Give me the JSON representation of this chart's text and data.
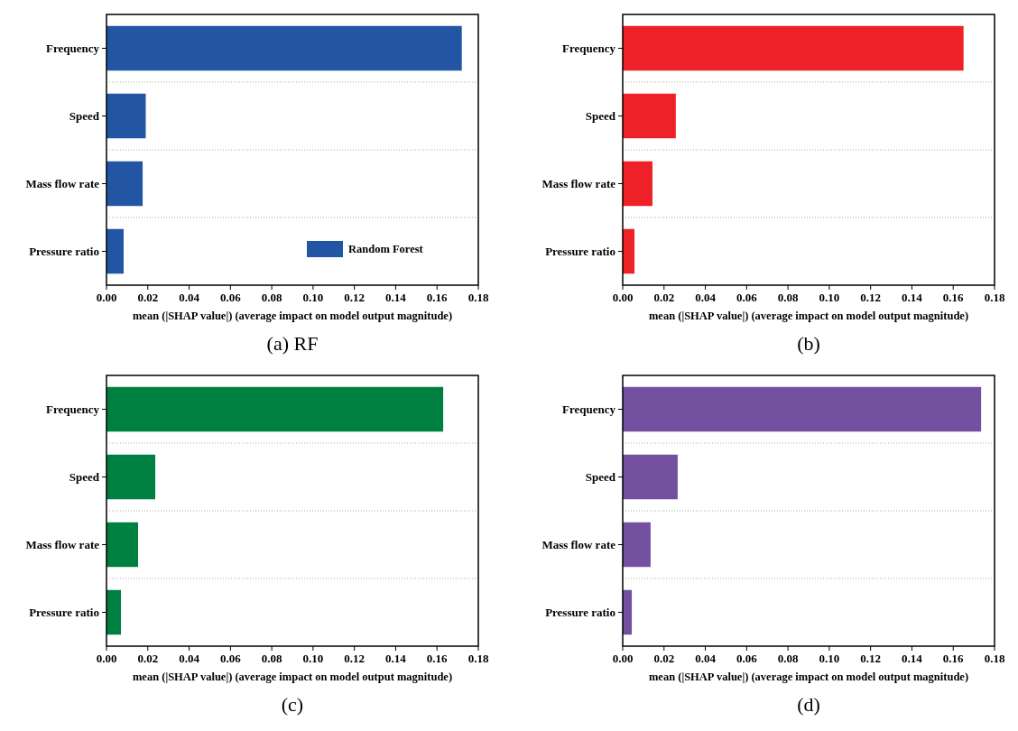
{
  "chart_data": [
    {
      "type": "bar",
      "orientation": "horizontal",
      "title": "(a) RF",
      "xlabel": "mean (|SHAP value|) (average impact on model output magnitude)",
      "categories": [
        "Frequency",
        "Speed",
        "Mass flow rate",
        "Pressure ratio"
      ],
      "series": [
        {
          "name": "Random Forest",
          "color": "#2255a4",
          "values": [
            0.172,
            0.019,
            0.0175,
            0.0083
          ]
        }
      ],
      "xlim": [
        0,
        0.18
      ],
      "xticks": [
        {
          "value": 0,
          "label": "0.00"
        },
        {
          "value": 0.02,
          "label": "0.02"
        },
        {
          "value": 0.04,
          "label": "0.04"
        },
        {
          "value": 0.06,
          "label": "0.06"
        },
        {
          "value": 0.08,
          "label": "0.08"
        },
        {
          "value": 0.1,
          "label": "0.10"
        },
        {
          "value": 0.12,
          "label": "0.12"
        },
        {
          "value": 0.14,
          "label": "0.14"
        },
        {
          "value": 0.16,
          "label": "0.16"
        },
        {
          "value": 0.18,
          "label": "0.18"
        }
      ],
      "grid": "y",
      "legend": "bottom right"
    },
    {
      "type": "bar",
      "orientation": "horizontal",
      "title": "(b)",
      "xlabel": "mean (|SHAP value|) (average impact on model output magnitude)",
      "categories": [
        "Frequency",
        "Speed",
        "Mass flow rate",
        "Pressure ratio"
      ],
      "series": [
        {
          "color": "#ee2128",
          "values": [
            0.165,
            0.0257,
            0.0144,
            0.0057
          ]
        }
      ],
      "xlim": [
        0,
        0.18
      ],
      "xticks": [
        {
          "value": 0,
          "label": "0.00"
        },
        {
          "value": 0.02,
          "label": "0.02"
        },
        {
          "value": 0.04,
          "label": "0.04"
        },
        {
          "value": 0.06,
          "label": "0.06"
        },
        {
          "value": 0.08,
          "label": "0.08"
        },
        {
          "value": 0.1,
          "label": "0.10"
        },
        {
          "value": 0.12,
          "label": "0.12"
        },
        {
          "value": 0.14,
          "label": "0.14"
        },
        {
          "value": 0.16,
          "label": "0.16"
        },
        {
          "value": 0.18,
          "label": "0.18"
        }
      ],
      "grid": "y"
    },
    {
      "type": "bar",
      "orientation": "horizontal",
      "title": "(c)",
      "xlabel": "mean (|SHAP value|) (average impact on model output magnitude)",
      "categories": [
        "Frequency",
        "Speed",
        "Mass flow rate",
        "Pressure ratio"
      ],
      "series": [
        {
          "color": "#008040",
          "values": [
            0.163,
            0.0236,
            0.0153,
            0.007
          ]
        }
      ],
      "xlim": [
        0,
        0.18
      ],
      "xticks": [
        {
          "value": 0,
          "label": "0.00"
        },
        {
          "value": 0.02,
          "label": "0.02"
        },
        {
          "value": 0.04,
          "label": "0.04"
        },
        {
          "value": 0.06,
          "label": "0.06"
        },
        {
          "value": 0.08,
          "label": "0.08"
        },
        {
          "value": 0.1,
          "label": "0.10"
        },
        {
          "value": 0.12,
          "label": "0.12"
        },
        {
          "value": 0.14,
          "label": "0.14"
        },
        {
          "value": 0.16,
          "label": "0.16"
        },
        {
          "value": 0.18,
          "label": "0.18"
        }
      ],
      "grid": "y"
    },
    {
      "type": "bar",
      "orientation": "horizontal",
      "title": "(d)",
      "xlabel": "mean (|SHAP value|) (average impact on model output magnitude)",
      "categories": [
        "Frequency",
        "Speed",
        "Mass flow rate",
        "Pressure ratio"
      ],
      "series": [
        {
          "color": "#7350a0",
          "values": [
            0.1735,
            0.0266,
            0.0135,
            0.0044
          ]
        }
      ],
      "xlim": [
        0,
        0.18
      ],
      "xticks": [
        {
          "value": 0,
          "label": "0.00"
        },
        {
          "value": 0.02,
          "label": "0.02"
        },
        {
          "value": 0.04,
          "label": "0.04"
        },
        {
          "value": 0.06,
          "label": "0.06"
        },
        {
          "value": 0.08,
          "label": "0.08"
        },
        {
          "value": 0.1,
          "label": "0.10"
        },
        {
          "value": 0.12,
          "label": "0.12"
        },
        {
          "value": 0.14,
          "label": "0.14"
        },
        {
          "value": 0.16,
          "label": "0.16"
        },
        {
          "value": 0.18,
          "label": "0.18"
        }
      ],
      "grid": "y"
    }
  ]
}
